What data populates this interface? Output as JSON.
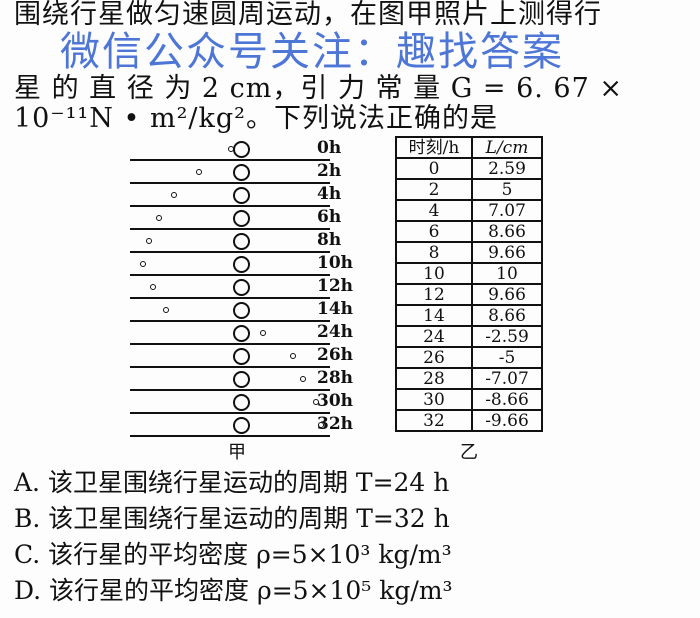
{
  "question": {
    "line1": "围绕行星做匀速圆周运动，在图甲照片上测得行",
    "line2": "星 的 直 径 为  2  cm，引 力 常 量  G = 6. 67 ×",
    "line3": "10⁻¹¹N • m²/kg²。下列说法正确的是"
  },
  "watermark": "微信公众号关注：趣找答案",
  "figure_a": {
    "caption": "甲",
    "time_labels": [
      "0h",
      "2h",
      "4h",
      "6h",
      "8h",
      "10h",
      "12h",
      "14h",
      "24h",
      "26h",
      "28h",
      "30h",
      "32h"
    ]
  },
  "table_b": {
    "caption": "乙",
    "headers": [
      "时刻/h",
      "L/cm"
    ],
    "rows": [
      [
        "0",
        "2.59"
      ],
      [
        "2",
        "5"
      ],
      [
        "4",
        "7.07"
      ],
      [
        "6",
        "8.66"
      ],
      [
        "8",
        "9.66"
      ],
      [
        "10",
        "10"
      ],
      [
        "12",
        "9.66"
      ],
      [
        "14",
        "8.66"
      ],
      [
        "24",
        "-2.59"
      ],
      [
        "26",
        "-5"
      ],
      [
        "28",
        "-7.07"
      ],
      [
        "30",
        "-8.66"
      ],
      [
        "32",
        "-9.66"
      ]
    ]
  },
  "options": [
    "A. 该卫星围绕行星运动的周期 T=24 h",
    "B. 该卫星围绕行星运动的周期 T=32 h",
    "C. 该行星的平均密度 ρ=5×10³ kg/m³",
    "D. 该行星的平均密度 ρ=5×10⁵ kg/m³"
  ],
  "colors": {
    "watermark": "#2f5fd0",
    "text": "#111111"
  }
}
